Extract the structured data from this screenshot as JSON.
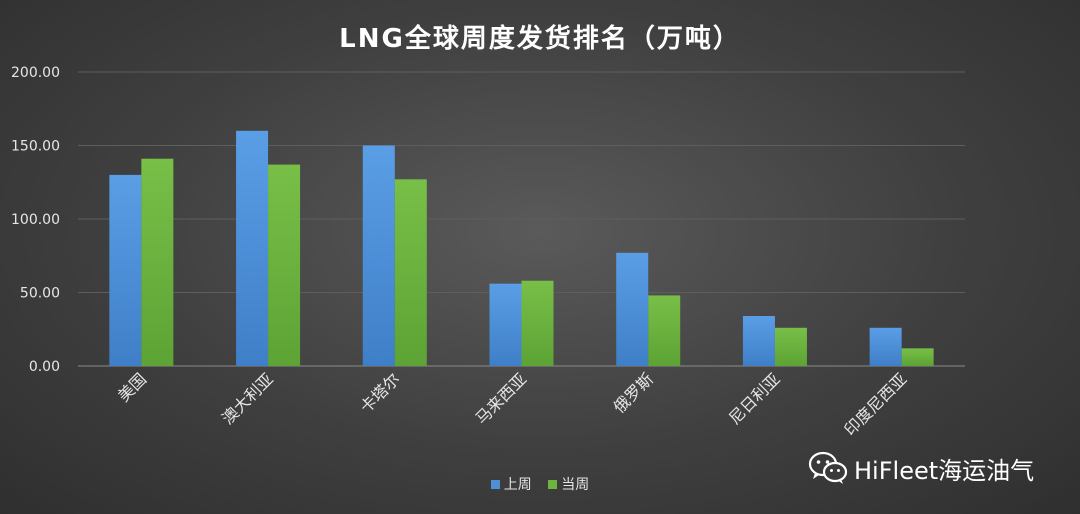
{
  "chart_data": {
    "type": "bar",
    "title": "LNG全球周度发货排名（万吨）",
    "categories": [
      "美国",
      "澳大利亚",
      "卡塔尔",
      "马来西亚",
      "俄罗斯",
      "尼日利亚",
      "印度尼西亚"
    ],
    "series": [
      {
        "name": "上周",
        "color": "#4f8fd6",
        "values": [
          130,
          160,
          150,
          56,
          77,
          34,
          26
        ]
      },
      {
        "name": "当周",
        "color": "#6db33f",
        "values": [
          141,
          137,
          127,
          58,
          48,
          26,
          12
        ]
      }
    ],
    "ylim": [
      0,
      200
    ],
    "yticks": [
      "0.00",
      "50.00",
      "100.00",
      "150.00",
      "200.00"
    ],
    "xlabel": "",
    "ylabel": "",
    "grid": true,
    "legend": "bottom"
  },
  "watermark": {
    "text": "HiFleet海运油气",
    "icon": "wechat-icon"
  }
}
